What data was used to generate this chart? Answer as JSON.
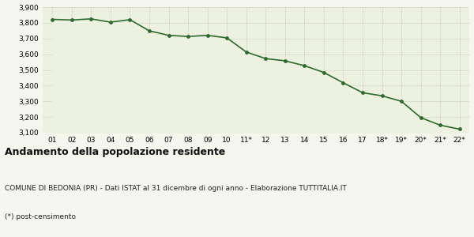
{
  "x_labels": [
    "01",
    "02",
    "03",
    "04",
    "05",
    "06",
    "07",
    "08",
    "09",
    "10",
    "11*",
    "12",
    "13",
    "14",
    "15",
    "16",
    "17",
    "18*",
    "19*",
    "20*",
    "21*",
    "22*"
  ],
  "values": [
    3822,
    3818,
    3825,
    3804,
    3820,
    3749,
    3720,
    3713,
    3720,
    3704,
    3614,
    3572,
    3558,
    3527,
    3484,
    3418,
    3355,
    3335,
    3300,
    3196,
    3148,
    3123
  ],
  "line_color": "#2d6a2d",
  "fill_color": "#edf2e0",
  "marker_color": "#2d6a2d",
  "bg_color": "#f5f6ee",
  "grid_color": "#d5d8c5",
  "ylim": [
    3100,
    3900
  ],
  "yticks": [
    3100,
    3200,
    3300,
    3400,
    3500,
    3600,
    3700,
    3800,
    3900
  ],
  "title": "Andamento della popolazione residente",
  "subtitle": "COMUNE DI BEDONIA (PR) - Dati ISTAT al 31 dicembre di ogni anno - Elaborazione TUTTITALIA.IT",
  "footnote": "(*) post-censimento",
  "title_fontsize": 9,
  "subtitle_fontsize": 6.5,
  "footnote_fontsize": 6.5,
  "tick_fontsize": 6.5
}
